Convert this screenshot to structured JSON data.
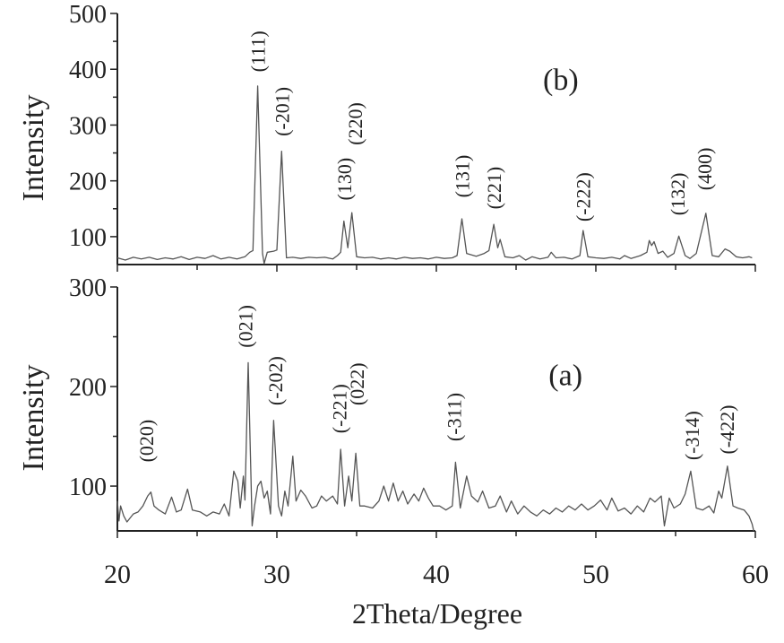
{
  "chart_data": [
    {
      "type": "line",
      "panel_label": "(b)",
      "panel_label_pos": {
        "x": 47.8,
        "y": 383
      },
      "ylabel": "Intensity",
      "xlim": [
        20,
        60
      ],
      "ylim": [
        50,
        500
      ],
      "yticks": [
        100,
        200,
        300,
        400,
        500
      ],
      "yminor": [
        150,
        250,
        350,
        450
      ],
      "line_color": "#555555",
      "series": [
        {
          "x": [
            20,
            20.5,
            21,
            21.5,
            22,
            22.5,
            23,
            23.5,
            24,
            24.5,
            25,
            25.5,
            26,
            26.5,
            27,
            27.5,
            28,
            28.3,
            28.5,
            28.8,
            29.1,
            29.2,
            29.4,
            29.8,
            30.0,
            30.3,
            30.6,
            31,
            31.5,
            32,
            32.5,
            33,
            33.5,
            33.8,
            34.0,
            34.2,
            34.45,
            34.7,
            35.0,
            35.5,
            36,
            36.5,
            37,
            37.5,
            38,
            38.5,
            39,
            39.5,
            40,
            40.5,
            41,
            41.3,
            41.6,
            41.9,
            42.5,
            43,
            43.3,
            43.6,
            43.85,
            44.0,
            44.3,
            44.8,
            45.2,
            45.6,
            46,
            46.5,
            47,
            47.2,
            47.5,
            48,
            48.5,
            49.0,
            49.2,
            49.5,
            50,
            50.5,
            51,
            51.5,
            51.8,
            52.2,
            52.8,
            53.2,
            53.35,
            53.5,
            53.65,
            53.9,
            54.2,
            54.5,
            54.9,
            55.2,
            55.6,
            55.9,
            56.3,
            56.9,
            57.3,
            57.7,
            58.1,
            58.4,
            58.8,
            59.2,
            59.6,
            59.8
          ],
          "y": [
            62,
            58,
            63,
            60,
            63,
            59,
            62,
            60,
            64,
            59,
            63,
            61,
            66,
            60,
            63,
            60,
            64,
            72,
            75,
            370,
            70,
            52,
            72,
            74,
            76,
            253,
            62,
            63,
            61,
            63,
            62,
            63,
            60,
            66,
            72,
            128,
            80,
            143,
            64,
            62,
            63,
            60,
            62,
            60,
            63,
            61,
            62,
            60,
            63,
            61,
            62,
            66,
            132,
            70,
            65,
            70,
            75,
            122,
            80,
            95,
            64,
            62,
            66,
            58,
            64,
            60,
            63,
            72,
            62,
            63,
            60,
            66,
            111,
            64,
            62,
            61,
            63,
            60,
            66,
            61,
            66,
            72,
            93,
            84,
            91,
            70,
            74,
            63,
            70,
            101,
            66,
            61,
            70,
            142,
            66,
            64,
            78,
            74,
            64,
            62,
            64,
            62
          ]
        }
      ],
      "annotations": [
        {
          "text": "(111)",
          "x": 28.8,
          "y": 395
        },
        {
          "text": "(-201)",
          "x": 30.3,
          "y": 280
        },
        {
          "text": "(130)",
          "x": 34.2,
          "y": 165
        },
        {
          "text": "(220)",
          "x": 34.9,
          "y": 264
        },
        {
          "text": "(131)",
          "x": 41.6,
          "y": 170
        },
        {
          "text": "(221)",
          "x": 43.6,
          "y": 149
        },
        {
          "text": "(-222)",
          "x": 49.2,
          "y": 127
        },
        {
          "text": "(132)",
          "x": 55.1,
          "y": 138
        },
        {
          "text": "(400)",
          "x": 56.8,
          "y": 183
        }
      ]
    },
    {
      "type": "line",
      "panel_label": "(a)",
      "panel_label_pos": {
        "x": 48.1,
        "y": 212
      },
      "ylabel": "Intensity",
      "xlabel": "2Theta/Degree",
      "xlim": [
        20,
        60
      ],
      "ylim": [
        55,
        300
      ],
      "xticks": [
        20,
        30,
        40,
        50,
        60
      ],
      "xminor": [
        25,
        35,
        45,
        55
      ],
      "yticks": [
        100,
        200,
        300
      ],
      "yminor": [
        150,
        250
      ],
      "line_color": "#555555",
      "series": [
        {
          "x": [
            20,
            20.1,
            20.2,
            20.4,
            20.6,
            21,
            21.3,
            21.6,
            21.9,
            22.1,
            22.3,
            22.6,
            23,
            23.4,
            23.7,
            24,
            24.4,
            24.7,
            25.2,
            25.6,
            26,
            26.4,
            26.7,
            27,
            27.3,
            27.55,
            27.7,
            27.9,
            28.0,
            28.2,
            28.45,
            28.6,
            28.8,
            29.0,
            29.2,
            29.4,
            29.6,
            29.8,
            30.1,
            30.3,
            30.5,
            30.7,
            31.0,
            31.2,
            31.5,
            31.8,
            32.2,
            32.5,
            32.8,
            33.1,
            33.5,
            33.8,
            34.0,
            34.25,
            34.5,
            34.7,
            34.95,
            35.2,
            35.5,
            36,
            36.4,
            36.7,
            37.0,
            37.3,
            37.6,
            37.9,
            38.2,
            38.6,
            38.9,
            39.2,
            39.5,
            39.8,
            40.2,
            40.6,
            41.0,
            41.2,
            41.5,
            41.9,
            42.2,
            42.6,
            42.9,
            43.3,
            43.7,
            44.0,
            44.4,
            44.7,
            45.1,
            45.5,
            45.9,
            46.3,
            46.7,
            47.1,
            47.5,
            47.9,
            48.3,
            48.7,
            49.1,
            49.5,
            49.9,
            50.3,
            50.7,
            51.0,
            51.4,
            51.8,
            52.2,
            52.6,
            53.0,
            53.4,
            53.7,
            54.1,
            54.3,
            54.6,
            54.9,
            55.3,
            55.6,
            55.95,
            56.3,
            56.7,
            57.1,
            57.4,
            57.7,
            57.9,
            58.25,
            58.6,
            58.9,
            59.3,
            59.6,
            59.8,
            59.9
          ],
          "y": [
            85,
            65,
            80,
            70,
            64,
            72,
            74,
            80,
            90,
            94,
            80,
            76,
            72,
            89,
            74,
            76,
            97,
            76,
            74,
            70,
            74,
            72,
            82,
            70,
            115,
            105,
            78,
            110,
            86,
            224,
            60,
            80,
            100,
            105,
            88,
            95,
            72,
            166,
            80,
            70,
            95,
            80,
            130,
            85,
            96,
            90,
            78,
            80,
            90,
            85,
            90,
            82,
            137,
            80,
            110,
            85,
            133,
            80,
            80,
            78,
            85,
            100,
            85,
            103,
            85,
            95,
            82,
            92,
            85,
            98,
            88,
            80,
            80,
            76,
            80,
            124,
            78,
            110,
            90,
            84,
            95,
            78,
            80,
            90,
            74,
            85,
            72,
            80,
            74,
            70,
            76,
            72,
            78,
            74,
            80,
            76,
            82,
            76,
            80,
            86,
            76,
            88,
            75,
            78,
            72,
            80,
            74,
            88,
            84,
            90,
            60,
            88,
            78,
            82,
            92,
            115,
            78,
            76,
            80,
            73,
            95,
            88,
            120,
            80,
            78,
            76,
            70,
            62,
            55
          ]
        }
      ],
      "annotations": [
        {
          "text": "(020)",
          "x": 21.8,
          "y": 124
        },
        {
          "text": "(021)",
          "x": 28.0,
          "y": 239
        },
        {
          "text": "(-202)",
          "x": 29.9,
          "y": 181
        },
        {
          "text": "(-221)",
          "x": 33.9,
          "y": 153
        },
        {
          "text": "(022)",
          "x": 35.0,
          "y": 181
        },
        {
          "text": "(-311)",
          "x": 41.1,
          "y": 145
        },
        {
          "text": "(-314)",
          "x": 56.0,
          "y": 126
        },
        {
          "text": "(-422)",
          "x": 58.2,
          "y": 132
        }
      ]
    }
  ]
}
